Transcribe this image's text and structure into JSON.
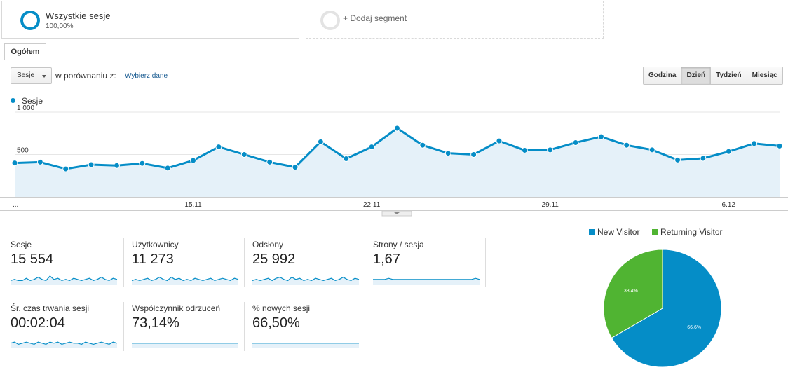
{
  "segments": {
    "active": {
      "title": "Wszystkie sesje",
      "percent": "100,00%"
    },
    "add_label": "+ Dodaj segment"
  },
  "tabs": [
    {
      "label": "Ogółem"
    }
  ],
  "controls": {
    "metric": "Sesje",
    "compare_label": "w porównaniu z:",
    "pick_label": "Wybierz dane",
    "periods": [
      "Godzina",
      "Dzień",
      "Tydzień",
      "Miesiąc"
    ],
    "active_period": "Dzień"
  },
  "chart_data": {
    "type": "line",
    "series": [
      {
        "name": "Sesje",
        "color": "#058dc7",
        "values": [
          400,
          410,
          330,
          380,
          370,
          395,
          340,
          430,
          590,
          500,
          410,
          350,
          650,
          450,
          590,
          810,
          610,
          515,
          500,
          660,
          550,
          555,
          640,
          710,
          610,
          555,
          435,
          455,
          535,
          630,
          600
        ]
      }
    ],
    "x_ticks": [
      {
        "index": 0,
        "label": "..."
      },
      {
        "index": 7,
        "label": "15.11"
      },
      {
        "index": 14,
        "label": "22.11"
      },
      {
        "index": 21,
        "label": "29.11"
      },
      {
        "index": 28,
        "label": "6.12"
      }
    ],
    "y_ticks": [
      {
        "value": 1000,
        "label": "1 000"
      },
      {
        "value": 500,
        "label": "500"
      }
    ],
    "ylim": [
      0,
      1000
    ],
    "grid": true,
    "legend": "top-left"
  },
  "scorecards": [
    {
      "label": "Sesje",
      "value": "15 554",
      "spark": [
        5,
        6,
        5,
        5,
        7,
        5,
        6,
        8,
        6,
        5,
        9,
        6,
        7,
        5,
        6,
        5,
        7,
        6,
        5,
        6,
        7,
        5,
        6,
        8,
        6,
        5,
        7,
        6
      ]
    },
    {
      "label": "Użytkownicy",
      "value": "11 273",
      "spark": [
        5,
        6,
        5,
        6,
        7,
        5,
        6,
        8,
        6,
        5,
        8,
        6,
        7,
        5,
        6,
        5,
        7,
        6,
        5,
        6,
        7,
        5,
        6,
        7,
        6,
        5,
        7,
        6
      ]
    },
    {
      "label": "Odsłony",
      "value": "25 992",
      "spark": [
        5,
        6,
        5,
        6,
        7,
        5,
        7,
        8,
        6,
        5,
        8,
        6,
        7,
        5,
        6,
        5,
        7,
        6,
        5,
        6,
        7,
        5,
        6,
        8,
        6,
        5,
        7,
        6
      ]
    },
    {
      "label": "Strony / sesja",
      "value": "1,67",
      "spark": [
        6,
        6,
        6,
        6,
        7,
        6,
        6,
        6,
        6,
        6,
        6,
        6,
        6,
        6,
        6,
        6,
        6,
        6,
        6,
        6,
        6,
        6,
        6,
        6,
        6,
        6,
        7,
        6
      ]
    },
    {
      "label": "Śr. czas trwania sesji",
      "value": "00:02:04",
      "spark": [
        6,
        7,
        5,
        6,
        7,
        6,
        5,
        7,
        6,
        5,
        7,
        6,
        7,
        5,
        6,
        7,
        6,
        6,
        5,
        7,
        6,
        5,
        6,
        7,
        6,
        5,
        7,
        6
      ]
    },
    {
      "label": "Współczynnik odrzuceń",
      "value": "73,14%",
      "spark": [
        6,
        6,
        6,
        6,
        6,
        6,
        6,
        6,
        6,
        6,
        6,
        6,
        6,
        6,
        6,
        6,
        6,
        6,
        6,
        6,
        6,
        6,
        6,
        6,
        6,
        6,
        6,
        6
      ]
    },
    {
      "label": "% nowych sesji",
      "value": "66,50%",
      "spark": [
        6,
        6,
        6,
        6,
        6,
        6,
        6,
        6,
        6,
        6,
        6,
        6,
        6,
        6,
        6,
        6,
        6,
        6,
        6,
        6,
        6,
        6,
        6,
        6,
        6,
        6,
        6,
        6
      ]
    }
  ],
  "pie_chart": {
    "type": "pie",
    "slices": [
      {
        "name": "New Visitor",
        "value": 66.6,
        "label": "66.6%",
        "color": "#058dc7"
      },
      {
        "name": "Returning Visitor",
        "value": 33.4,
        "label": "33.4%",
        "color": "#50b432"
      }
    ]
  }
}
